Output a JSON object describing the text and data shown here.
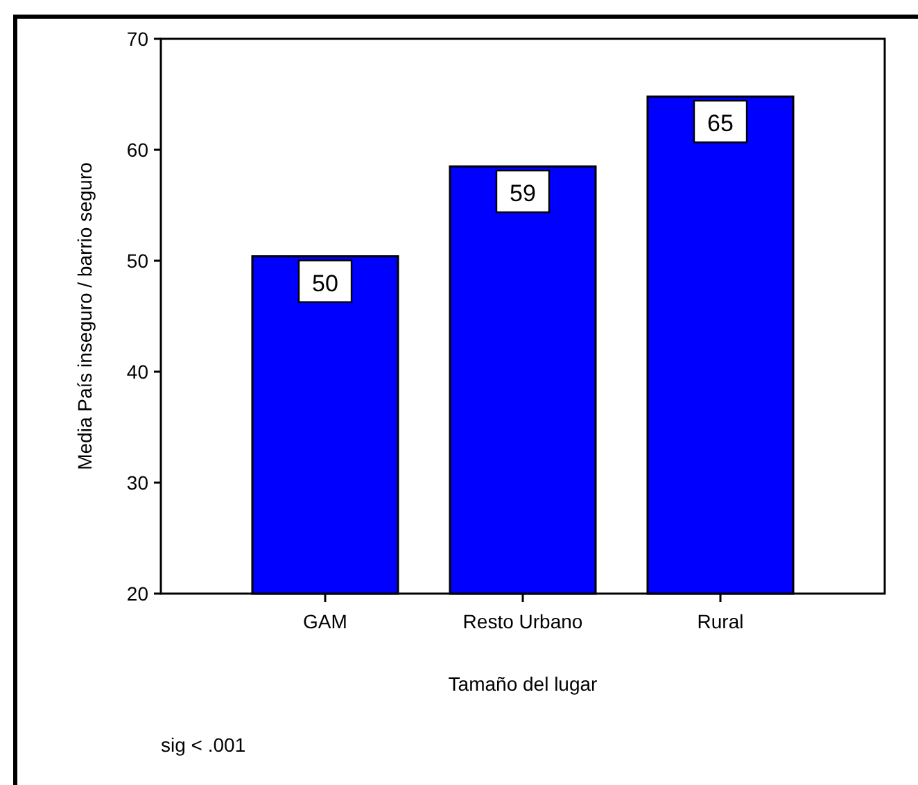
{
  "chart_data": {
    "type": "bar",
    "xlabel": "Tamaño del lugar",
    "ylabel": "Media País inseguro / barrio seguro",
    "categories": [
      "GAM",
      "Resto Urbano",
      "Rural"
    ],
    "values": [
      50.4,
      58.5,
      64.8
    ],
    "value_labels": [
      "50",
      "59",
      "65"
    ],
    "color": "#0000ff",
    "ylim": [
      20,
      70
    ],
    "yticks": [
      20,
      30,
      40,
      50,
      60,
      70
    ],
    "grid": false,
    "annotations": [
      "sig < .001"
    ]
  }
}
